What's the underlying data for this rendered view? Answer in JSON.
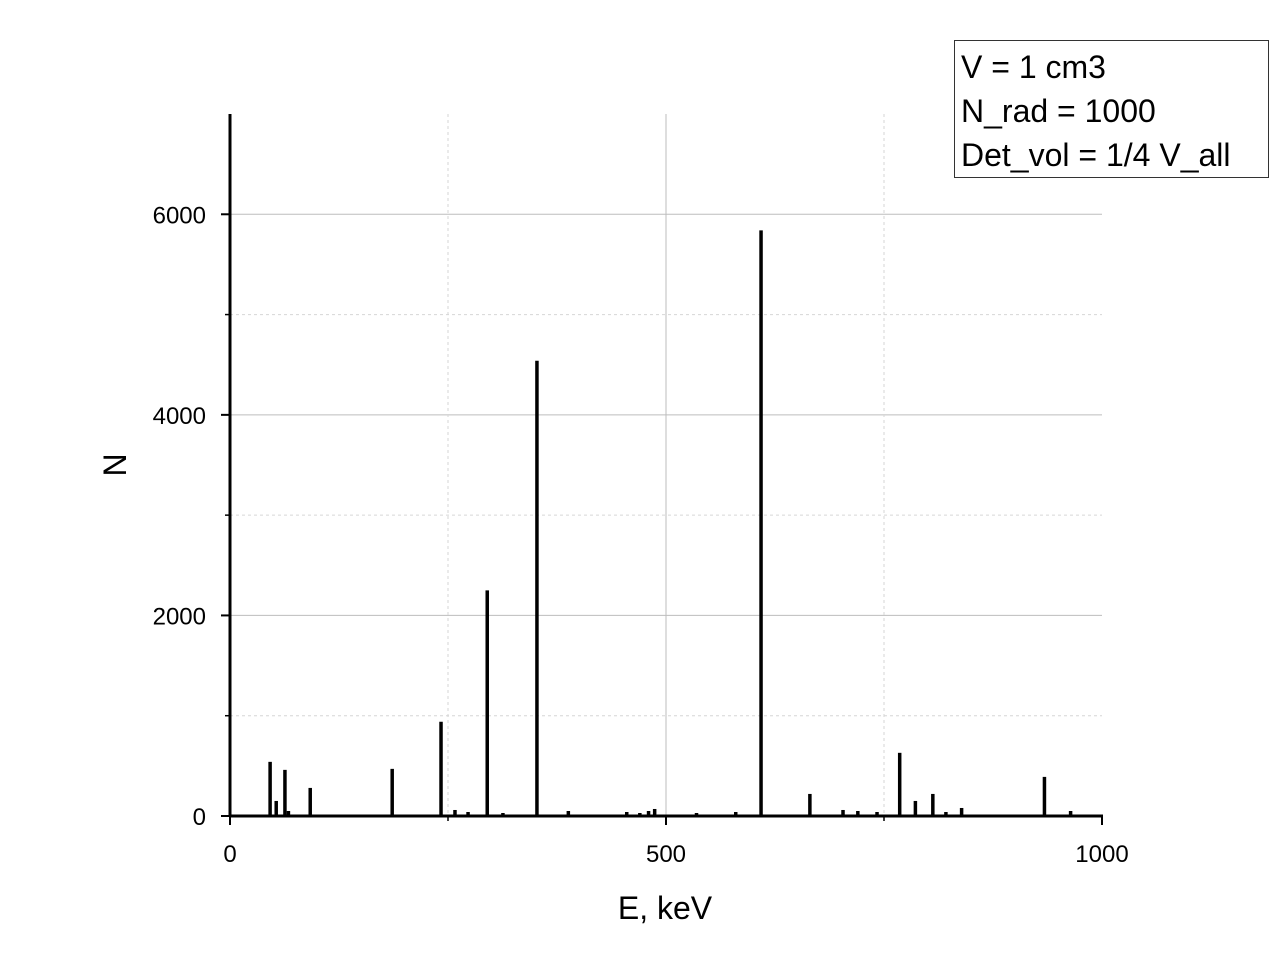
{
  "chart_data": {
    "type": "bar",
    "xlabel": "E, keV",
    "ylabel": "N",
    "xlim": [
      0,
      1000
    ],
    "ylim": [
      0,
      7000
    ],
    "xticks": [
      0,
      500,
      1000
    ],
    "yticks": [
      0,
      2000,
      4000,
      6000
    ],
    "grid": true,
    "legend_position": "top-right",
    "annotations": [
      "V = 1 cm3",
      "N_rad = 1000",
      "Det_vol = 1/4 V_all"
    ],
    "bar_color": "#000000",
    "points": [
      {
        "x": 46,
        "y": 540
      },
      {
        "x": 53,
        "y": 150
      },
      {
        "x": 63,
        "y": 460
      },
      {
        "x": 67,
        "y": 50
      },
      {
        "x": 92,
        "y": 280
      },
      {
        "x": 186,
        "y": 470
      },
      {
        "x": 242,
        "y": 940
      },
      {
        "x": 258,
        "y": 60
      },
      {
        "x": 273,
        "y": 40
      },
      {
        "x": 295,
        "y": 2250
      },
      {
        "x": 313,
        "y": 30
      },
      {
        "x": 352,
        "y": 4540
      },
      {
        "x": 388,
        "y": 50
      },
      {
        "x": 455,
        "y": 40
      },
      {
        "x": 470,
        "y": 30
      },
      {
        "x": 480,
        "y": 50
      },
      {
        "x": 487,
        "y": 70
      },
      {
        "x": 535,
        "y": 30
      },
      {
        "x": 580,
        "y": 40
      },
      {
        "x": 609,
        "y": 5840
      },
      {
        "x": 665,
        "y": 220
      },
      {
        "x": 703,
        "y": 60
      },
      {
        "x": 720,
        "y": 50
      },
      {
        "x": 742,
        "y": 40
      },
      {
        "x": 768,
        "y": 630
      },
      {
        "x": 786,
        "y": 150
      },
      {
        "x": 806,
        "y": 220
      },
      {
        "x": 821,
        "y": 40
      },
      {
        "x": 839,
        "y": 80
      },
      {
        "x": 934,
        "y": 390
      },
      {
        "x": 964,
        "y": 50
      }
    ]
  }
}
